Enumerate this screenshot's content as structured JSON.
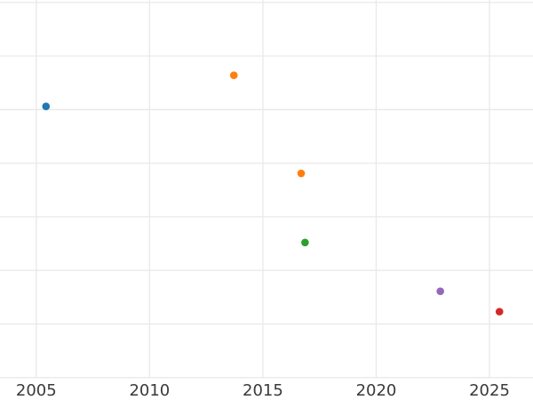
{
  "figure": {
    "background_color": "#ffffff",
    "grid_color": "#e9e9e9",
    "tick_label_color": "#3a3a3a",
    "tick_label_font_size_px": 18
  },
  "chart_data": {
    "type": "scatter",
    "title": "",
    "xlabel": "",
    "ylabel": "",
    "grid": true,
    "legend": false,
    "x_ticks": [
      2005,
      2010,
      2015,
      2020,
      2025
    ],
    "x_tick_labels": [
      "2005",
      "2010",
      "2015",
      "2020",
      "2025"
    ],
    "xlim": [
      2003.4,
      2026.92
    ],
    "ylim": [
      -0.418,
      7.045
    ],
    "y_gridline_units": [
      0,
      1,
      2,
      3,
      4,
      5,
      6,
      7
    ],
    "y_axis_note": "y-axis tick labels are cropped out of the visible image; y values below are expressed in gridline units counted up from the bottom visible gridline",
    "points": [
      {
        "x": 2005.43,
        "y": 5.06,
        "color": "#1f77b4",
        "color_name": "blue"
      },
      {
        "x": 2013.72,
        "y": 5.64,
        "color": "#ff7f0e",
        "color_name": "orange"
      },
      {
        "x": 2016.69,
        "y": 3.81,
        "color": "#ff7f0e",
        "color_name": "orange"
      },
      {
        "x": 2016.86,
        "y": 2.52,
        "color": "#2ca02c",
        "color_name": "green"
      },
      {
        "x": 2022.83,
        "y": 1.61,
        "color": "#9467bd",
        "color_name": "purple"
      },
      {
        "x": 2025.44,
        "y": 1.23,
        "color": "#d62728",
        "color_name": "red"
      }
    ]
  }
}
